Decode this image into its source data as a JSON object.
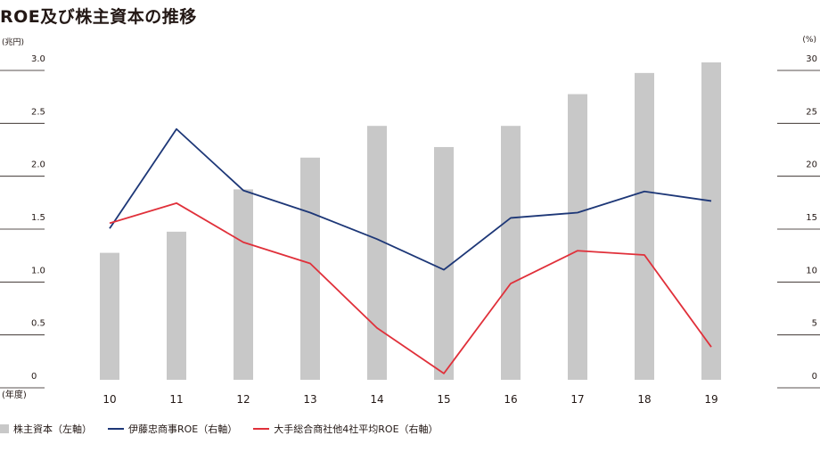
{
  "title": "ROE及び株主資本の推移",
  "left_unit": "(兆円)",
  "right_unit": "(%)",
  "x_unit": "(年度)",
  "colors": {
    "bar": "#c8c8c8",
    "itochu": "#1d3777",
    "avg": "#e0303a",
    "grid": "#231815"
  },
  "chart_data": {
    "type": "bar",
    "categories": [
      "10",
      "11",
      "12",
      "13",
      "14",
      "15",
      "16",
      "17",
      "18",
      "19"
    ],
    "series": [
      {
        "name": "株主資本（左軸）",
        "type": "bar",
        "axis": "left",
        "values": [
          1.2,
          1.4,
          1.8,
          2.1,
          2.4,
          2.2,
          2.4,
          2.7,
          2.9,
          3.0
        ]
      },
      {
        "name": "伊藤忠商事ROE（右軸）",
        "type": "line",
        "axis": "right",
        "values": [
          14.3,
          23.7,
          17.9,
          15.8,
          13.3,
          10.4,
          15.3,
          15.8,
          17.8,
          16.9
        ]
      },
      {
        "name": "大手総合商社他4社平均ROE（右軸）",
        "type": "line",
        "axis": "right",
        "values": [
          14.8,
          16.7,
          13.0,
          11.0,
          4.9,
          0.6,
          9.1,
          12.2,
          11.8,
          3.1
        ]
      }
    ],
    "left_axis": {
      "ylim": [
        0,
        3.0
      ],
      "ticks": [
        "0",
        "0.5",
        "1.0",
        "1.5",
        "2.0",
        "2.5",
        "3.0"
      ]
    },
    "right_axis": {
      "ylim": [
        0,
        30
      ],
      "ticks": [
        "0",
        "5",
        "10",
        "15",
        "20",
        "25",
        "30"
      ]
    },
    "grid": false,
    "legend_position": "bottom-left"
  }
}
